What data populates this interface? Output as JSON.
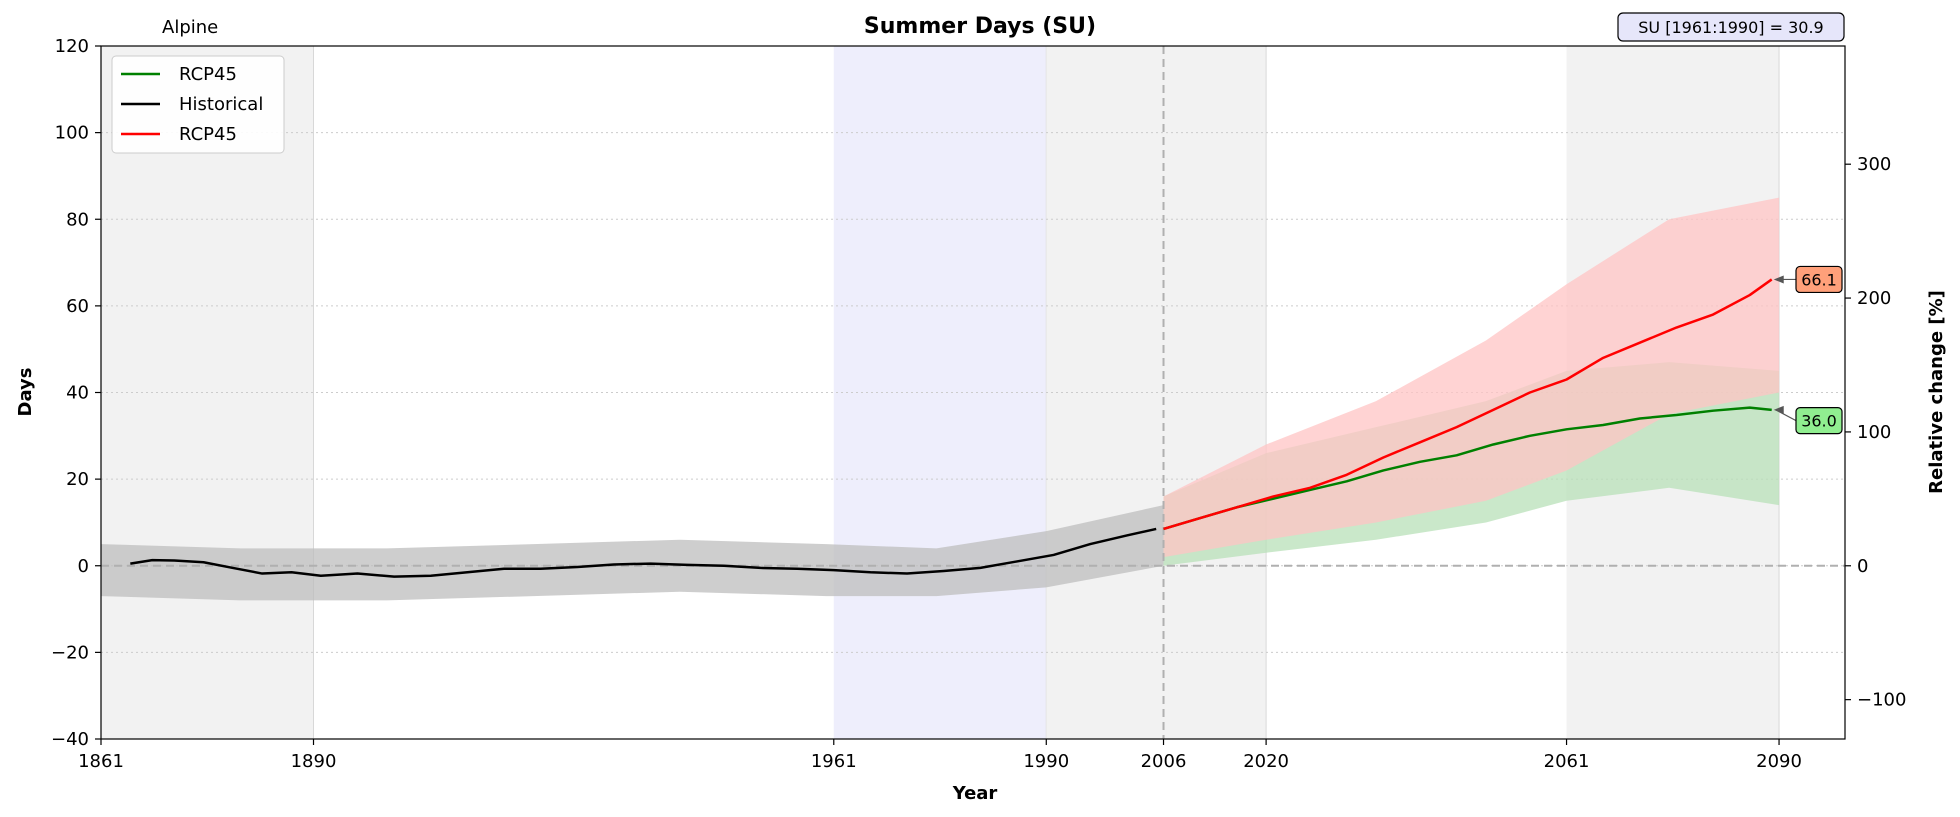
{
  "chart_data": {
    "type": "line",
    "title": "Summer Days (SU)",
    "region_label": "Alpine",
    "baseline_label": "SU [1961:1990] = 30.9",
    "xlabel": "Year",
    "ylabel": "Days",
    "y2label": "Relative change [%]",
    "xlim": [
      1861,
      2099
    ],
    "ylim": [
      -40,
      120
    ],
    "y2lim": [
      -129.4,
      388.3
    ],
    "x_ticks": [
      1861,
      1890,
      1961,
      1990,
      2006,
      2020,
      2061,
      2090
    ],
    "y_ticks": [
      -40,
      -20,
      0,
      20,
      40,
      60,
      80,
      100,
      120
    ],
    "y_tick_labels": [
      "−40",
      "−20",
      "0",
      "20",
      "40",
      "60",
      "80",
      "100",
      "120"
    ],
    "y2_ticks": [
      -100,
      0,
      100,
      200,
      300
    ],
    "y2_tick_labels": [
      "−100",
      "0",
      "100",
      "200",
      "300"
    ],
    "grid": "horizontal dotted",
    "legend_position": "top-left",
    "colors": {
      "historical": "#000000",
      "rcp45_green": "#008000",
      "rcp45_red": "#ff0000",
      "shade_gray": "#f2f2f2",
      "shade_baseline": "#eeeefc",
      "hist_band": "#bdbdbd",
      "green_band": "#b8e0b8",
      "red_band": "#ffc4c4",
      "label_green": "#90ee90",
      "label_red": "#ffa07a",
      "baseline_box": "#e6e6fa"
    },
    "shaded_periods": [
      {
        "from": 1861,
        "to": 1890,
        "kind": "gray"
      },
      {
        "from": 1961,
        "to": 1990,
        "kind": "baseline"
      },
      {
        "from": 1990,
        "to": 2020,
        "kind": "gray"
      },
      {
        "from": 2061,
        "to": 2090,
        "kind": "gray"
      }
    ],
    "vertical_marker_year": 2006,
    "legend": [
      "RCP45",
      "Historical",
      "RCP45"
    ],
    "series": [
      {
        "name": "Historical",
        "color": "#000000",
        "x": [
          1865,
          1868,
          1871,
          1875,
          1879,
          1883,
          1887,
          1891,
          1896,
          1901,
          1906,
          1911,
          1916,
          1921,
          1926,
          1931,
          1936,
          1941,
          1946,
          1951,
          1956,
          1961,
          1966,
          1971,
          1976,
          1981,
          1986,
          1991,
          1996,
          2001,
          2005
        ],
        "y": [
          0.5,
          1.3,
          1.2,
          0.8,
          -0.5,
          -1.8,
          -1.5,
          -2.3,
          -1.8,
          -2.5,
          -2.3,
          -1.5,
          -0.7,
          -0.7,
          -0.3,
          0.3,
          0.5,
          0.2,
          0.0,
          -0.5,
          -0.7,
          -1.0,
          -1.5,
          -1.8,
          -1.2,
          -0.5,
          1.0,
          2.5,
          5.0,
          7.0,
          8.5
        ]
      },
      {
        "name": "RCP45",
        "color": "#008000",
        "x": [
          2006,
          2011,
          2016,
          2021,
          2026,
          2031,
          2036,
          2041,
          2046,
          2051,
          2056,
          2061,
          2066,
          2071,
          2076,
          2081,
          2086,
          2089
        ],
        "y": [
          8.5,
          11.0,
          13.5,
          15.5,
          17.5,
          19.5,
          22.0,
          24.0,
          25.5,
          28.0,
          30.0,
          31.5,
          32.5,
          34.0,
          34.8,
          35.8,
          36.5,
          36.0
        ]
      },
      {
        "name": "RCP45",
        "color": "#ff0000",
        "x": [
          2006,
          2011,
          2016,
          2021,
          2026,
          2031,
          2036,
          2041,
          2046,
          2051,
          2056,
          2061,
          2066,
          2071,
          2076,
          2081,
          2086,
          2089
        ],
        "y": [
          8.5,
          11.0,
          13.5,
          16.0,
          18.0,
          21.0,
          25.0,
          28.5,
          32.0,
          36.0,
          40.0,
          43.0,
          48.0,
          51.5,
          55.0,
          58.0,
          62.5,
          66.1
        ]
      }
    ],
    "bands": [
      {
        "name": "Historical spread",
        "color": "#bdbdbd",
        "x": [
          1861,
          1880,
          1900,
          1920,
          1940,
          1960,
          1975,
          1990,
          2006
        ],
        "lower": [
          -7,
          -8,
          -8,
          -7,
          -6,
          -7,
          -7,
          -5,
          0
        ],
        "upper": [
          5,
          4,
          4,
          5,
          6,
          5,
          4,
          8,
          14
        ]
      },
      {
        "name": "RCP45 green spread",
        "color": "#b8e0b8",
        "x": [
          2006,
          2020,
          2035,
          2050,
          2061,
          2075,
          2090
        ],
        "lower": [
          0,
          3,
          6,
          10,
          15,
          18,
          14
        ],
        "upper": [
          16,
          26,
          32,
          38,
          45,
          47,
          45
        ]
      },
      {
        "name": "RCP45 red spread",
        "color": "#ffc4c4",
        "x": [
          2006,
          2020,
          2035,
          2050,
          2061,
          2075,
          2090
        ],
        "lower": [
          2,
          6,
          10,
          15,
          22,
          35,
          40
        ],
        "upper": [
          16,
          28,
          38,
          52,
          65,
          80,
          85
        ]
      }
    ],
    "annotations": [
      {
        "text": "66.1",
        "series": "RCP45 red",
        "color": "#ffa07a"
      },
      {
        "text": "36.0",
        "series": "RCP45 green",
        "color": "#90ee90"
      }
    ]
  }
}
